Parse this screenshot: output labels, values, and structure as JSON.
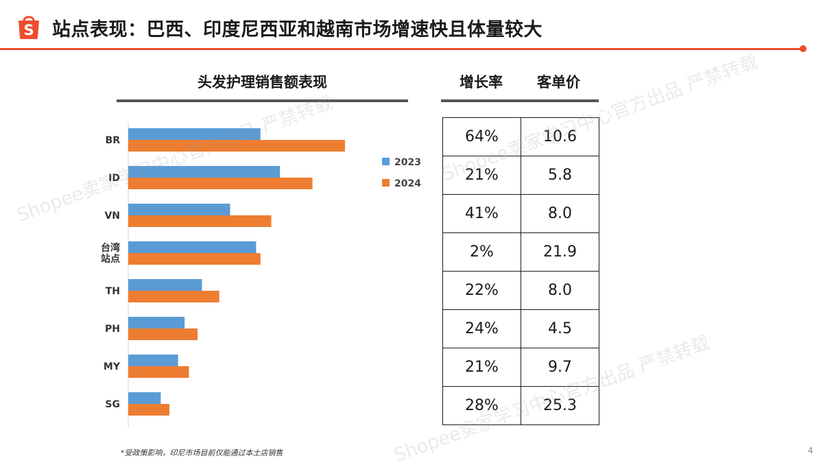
{
  "title": "站点表现：巴西、印度尼西亚和越南市场增速快且体量较大",
  "logo_letter": "S",
  "chart_data": {
    "type": "bar",
    "orientation": "horizontal",
    "title": "头发护理销售额表现",
    "categories": [
      "BR",
      "ID",
      "VN",
      "台湾站点",
      "TH",
      "PH",
      "MY",
      "SG"
    ],
    "category_display": [
      [
        "BR"
      ],
      [
        "ID"
      ],
      [
        "VN"
      ],
      [
        "台湾",
        "站点"
      ],
      [
        "TH"
      ],
      [
        "PH"
      ],
      [
        "MY"
      ],
      [
        "SG"
      ]
    ],
    "series": [
      {
        "name": "2023",
        "color": "#5b9bd5",
        "values": [
          61,
          70,
          47,
          59,
          34,
          26,
          23,
          15
        ]
      },
      {
        "name": "2024",
        "color": "#ed7d31",
        "values": [
          100,
          85,
          66,
          61,
          42,
          32,
          28,
          19
        ]
      }
    ],
    "xlim": [
      0,
      100
    ],
    "legend": "right",
    "grid": false
  },
  "table": {
    "headers": [
      "增长率",
      "客单价"
    ],
    "rows": [
      [
        "64%",
        "10.6"
      ],
      [
        "21%",
        "5.8"
      ],
      [
        "41%",
        "8.0"
      ],
      [
        "2%",
        "21.9"
      ],
      [
        "22%",
        "8.0"
      ],
      [
        "24%",
        "4.5"
      ],
      [
        "21%",
        "9.7"
      ],
      [
        "28%",
        "25.3"
      ]
    ]
  },
  "footnote": "*受政策影响，印尼市场目前仅能通过本土店销售",
  "page_number": "4",
  "watermarks": [
    "Shopee卖家学习中心官方出品 严禁转载",
    "Shopee卖家学习中心官方出品 严禁转载",
    "Shopee卖家学习中心官方出品 严禁转载"
  ],
  "colors": {
    "accent": "#ee4d2d",
    "series_2023": "#5b9bd5",
    "series_2024": "#ed7d31"
  }
}
